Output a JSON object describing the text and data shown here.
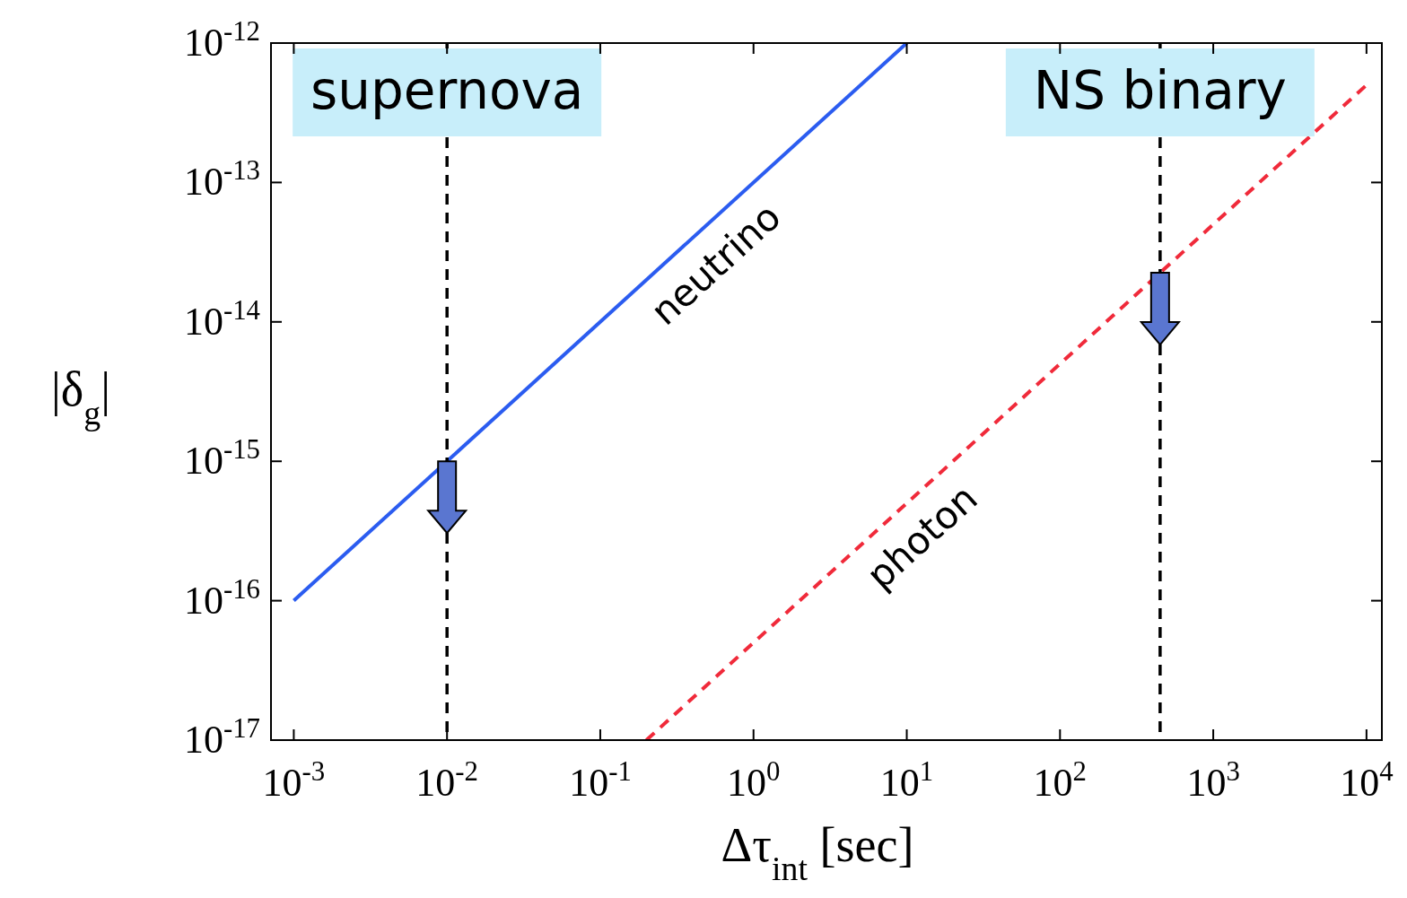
{
  "chart_data": {
    "type": "line",
    "xlabel": "Δτ$_{int}$ [sec]",
    "ylabel": "|δ$_{g}$|",
    "log": "xy",
    "grid": false,
    "xlim": [
      0.00071,
      12600
    ],
    "ylim": [
      1e-17,
      1e-12
    ],
    "xticks": [
      {
        "value": 0.001,
        "label": "10$^{-3}$"
      },
      {
        "value": 0.01,
        "label": "10$^{-2}$"
      },
      {
        "value": 0.1,
        "label": "10$^{-1}$"
      },
      {
        "value": 1,
        "label": "10$^{0}$"
      },
      {
        "value": 10,
        "label": "10$^{1}$"
      },
      {
        "value": 100,
        "label": "10$^{2}$"
      },
      {
        "value": 1000,
        "label": "10$^{3}$"
      },
      {
        "value": 10000,
        "label": "10$^{4}$"
      }
    ],
    "yticks": [
      {
        "value": 1e-17,
        "label": "10$^{-17}$"
      },
      {
        "value": 1e-16,
        "label": "10$^{-16}$"
      },
      {
        "value": 1e-15,
        "label": "10$^{-15}$"
      },
      {
        "value": 1e-14,
        "label": "10$^{-14}$"
      },
      {
        "value": 1e-13,
        "label": "10$^{-13}$"
      },
      {
        "value": 1e-12,
        "label": "10$^{-12}$"
      }
    ],
    "series": [
      {
        "name": "neutrino",
        "color": "#2b5cf0",
        "line_style": "solid",
        "x": [
          0.001,
          10
        ],
        "values": [
          1e-16,
          1e-12
        ]
      },
      {
        "name": "photon",
        "color": "#f02a3a",
        "line_style": "dashed",
        "x": [
          0.2,
          10000
        ],
        "values": [
          1e-17,
          5e-13
        ]
      }
    ],
    "ref_lines": [
      {
        "axis": "x",
        "value": 0.01,
        "label": "supernova",
        "color": "#000000",
        "line_style": "dashed"
      },
      {
        "axis": "x",
        "value": 450,
        "label": "NS binary",
        "color": "#000000",
        "line_style": "dashed"
      }
    ]
  }
}
